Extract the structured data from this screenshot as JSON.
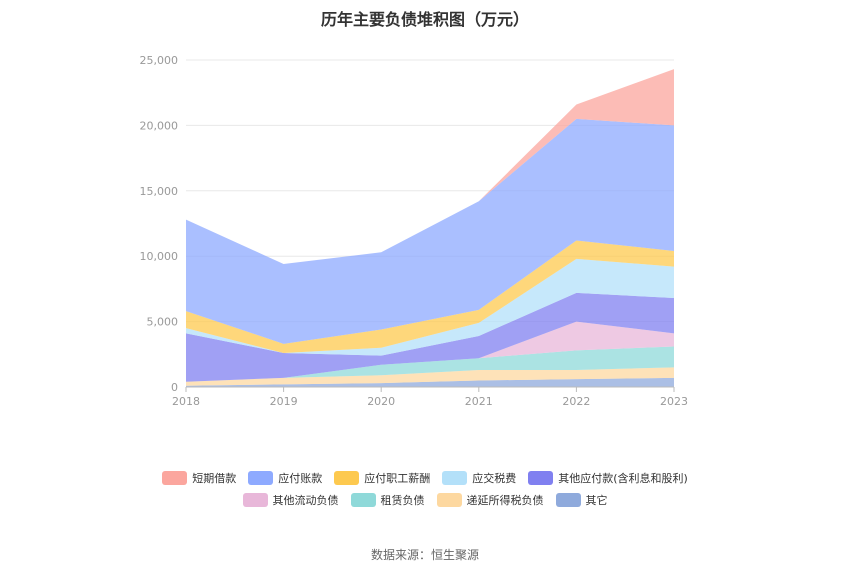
{
  "title": "历年主要负债堆积图（万元）",
  "source_label": "数据来源：恒生聚源",
  "chart_data": {
    "type": "area",
    "stacked": true,
    "title": "历年主要负债堆积图（万元）",
    "categories": [
      "2018",
      "2019",
      "2020",
      "2021",
      "2022",
      "2023"
    ],
    "ylim": [
      0,
      25000
    ],
    "yticks": [
      0,
      5000,
      10000,
      15000,
      20000,
      25000
    ],
    "ytick_labels": [
      "0",
      "5,000",
      "10,000",
      "15,000",
      "20,000",
      "25,000"
    ],
    "grid": true,
    "legend_position": "bottom",
    "series": [
      {
        "name": "其它",
        "color": "#8faadc",
        "values": [
          100,
          200,
          300,
          500,
          600,
          700
        ]
      },
      {
        "name": "递延所得税负债",
        "color": "#fdd8a0",
        "values": [
          300,
          500,
          600,
          800,
          700,
          800
        ]
      },
      {
        "name": "租赁负债",
        "color": "#8fd9d9",
        "values": [
          0,
          0,
          800,
          900,
          1500,
          1600
        ]
      },
      {
        "name": "其他流动负债",
        "color": "#e8b7d9",
        "values": [
          0,
          0,
          0,
          0,
          2200,
          1000
        ]
      },
      {
        "name": "其他应付款(含利息和股利)",
        "color": "#8080f0",
        "values": [
          3700,
          1900,
          700,
          1700,
          2200,
          2700
        ]
      },
      {
        "name": "应交税费",
        "color": "#b3e0f9",
        "values": [
          400,
          0,
          600,
          1000,
          2600,
          2400
        ]
      },
      {
        "name": "应付职工薪酬",
        "color": "#fdc94f",
        "values": [
          1300,
          700,
          1400,
          1000,
          1400,
          1200
        ]
      },
      {
        "name": "应付账款",
        "color": "#8eaaff",
        "values": [
          7000,
          6100,
          5900,
          8300,
          9300,
          9600
        ]
      },
      {
        "name": "短期借款",
        "color": "#fba69e",
        "values": [
          0,
          0,
          0,
          0,
          1100,
          4300
        ]
      }
    ]
  },
  "legend_rows": [
    [
      {
        "name": "短期借款",
        "color": "#fba69e"
      },
      {
        "name": "应付账款",
        "color": "#8eaaff"
      },
      {
        "name": "应付职工薪酬",
        "color": "#fdc94f"
      },
      {
        "name": "应交税费",
        "color": "#b3e0f9"
      },
      {
        "name": "其他应付款(含利息和股利)",
        "color": "#8080f0"
      }
    ],
    [
      {
        "name": "其他流动负债",
        "color": "#e8b7d9"
      },
      {
        "name": "租赁负债",
        "color": "#8fd9d9"
      },
      {
        "name": "递延所得税负债",
        "color": "#fdd8a0"
      },
      {
        "name": "其它",
        "color": "#8faadc"
      }
    ]
  ]
}
